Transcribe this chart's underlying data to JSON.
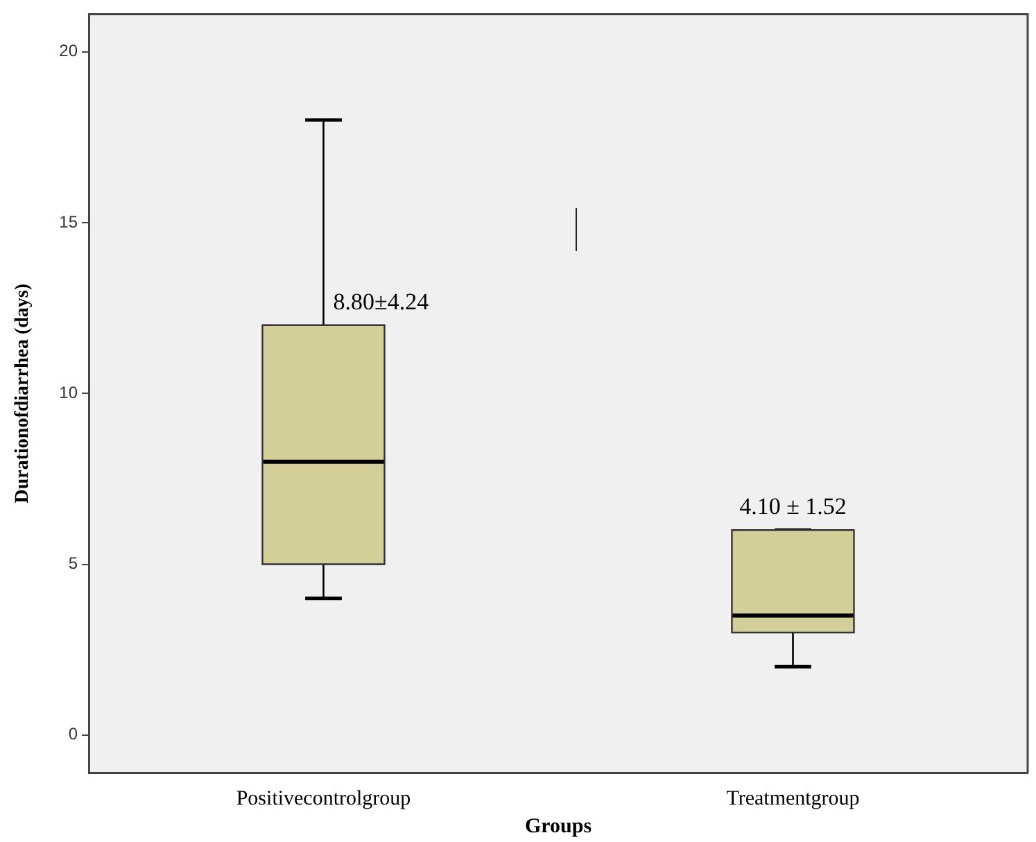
{
  "chart_data": {
    "type": "box",
    "xlabel": "Groups",
    "ylabel": "Durationofdiarrhea (days)",
    "categories": [
      "Positivecontrolgroup",
      "Treatmentgroup"
    ],
    "series": [
      {
        "color": "#d4cf98",
        "boxes": [
          {
            "low": 4,
            "q1": 5,
            "median": 8,
            "q3": 12,
            "high": 18
          },
          {
            "low": 2,
            "q1": 3,
            "median": 3.5,
            "q3": 6,
            "high": 6
          }
        ]
      }
    ],
    "ylim": [
      -1.1,
      21.1
    ],
    "yticks": [
      0,
      5,
      10,
      15,
      20
    ],
    "annotations": [
      "8.80±4.24",
      "4.10 ± 1.52"
    ]
  }
}
